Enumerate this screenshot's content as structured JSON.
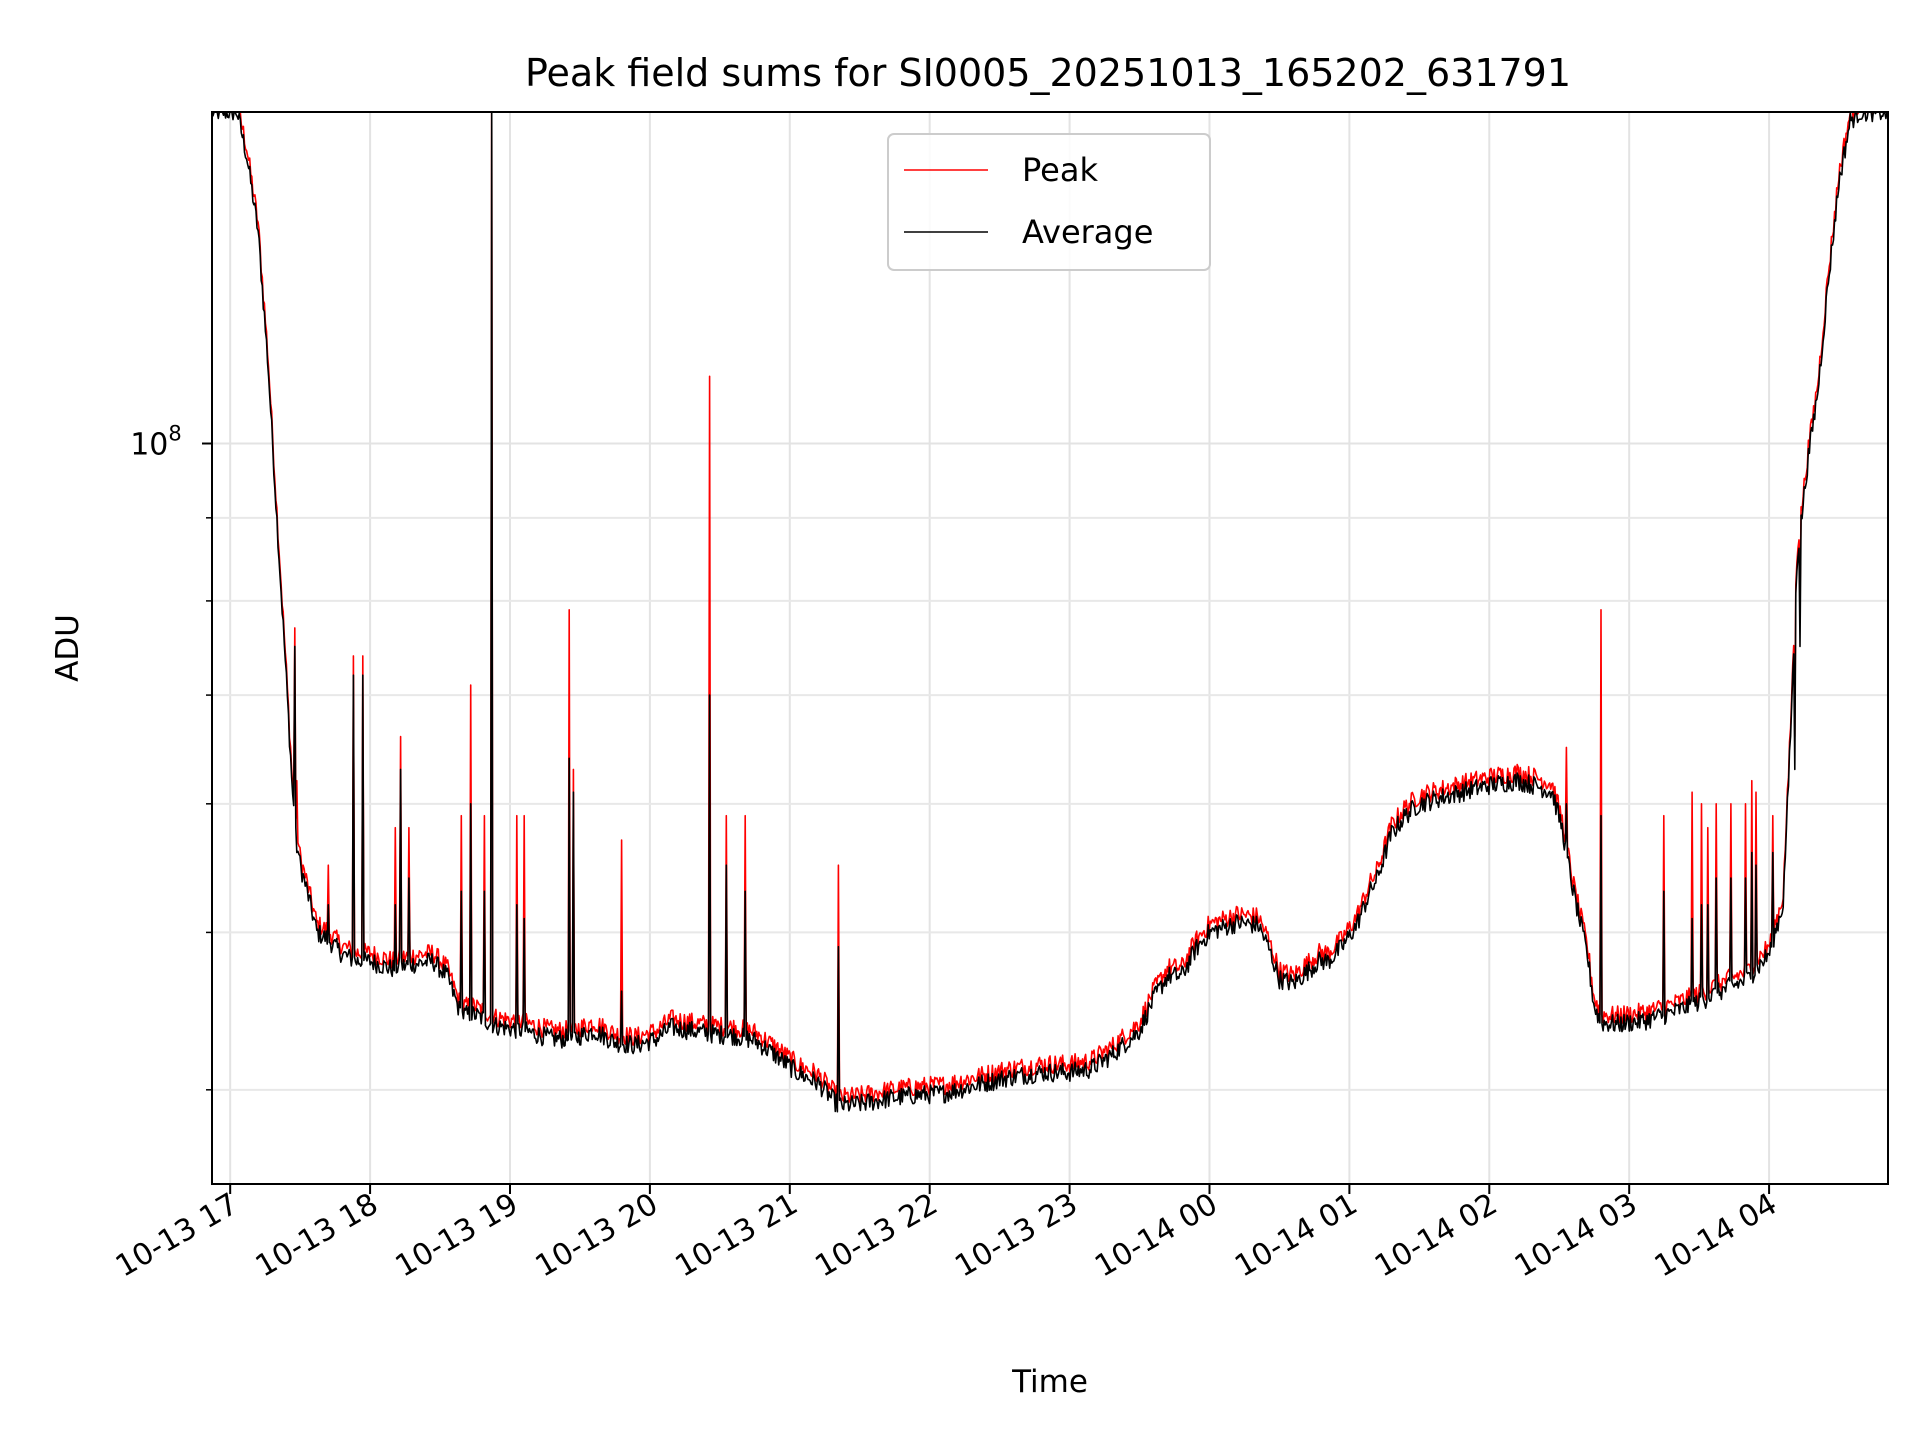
{
  "chart_data": {
    "type": "line",
    "title": "Peak field sums for SI0005_20251013_165202_631791",
    "xlabel": "Time",
    "ylabel": "ADU",
    "yscale": "log",
    "ylim": [
      35000000,
      160000000
    ],
    "xlim_hours": [
      16.87,
      28.85
    ],
    "x_unit": "hours since 2025-10-13 00:00",
    "grid": true,
    "legend_position": "upper-center",
    "y_major_tick_labels": [
      {
        "value": 100000000,
        "base": "10",
        "exponent": "8"
      }
    ],
    "y_minor_ticks": [
      40000000,
      50000000,
      60000000,
      70000000,
      80000000,
      90000000,
      200000000
    ],
    "x_ticks": [
      {
        "hour": 17,
        "label": "10-13 17"
      },
      {
        "hour": 18,
        "label": "10-13 18"
      },
      {
        "hour": 19,
        "label": "10-13 19"
      },
      {
        "hour": 20,
        "label": "10-13 20"
      },
      {
        "hour": 21,
        "label": "10-13 21"
      },
      {
        "hour": 22,
        "label": "10-13 22"
      },
      {
        "hour": 23,
        "label": "10-13 23"
      },
      {
        "hour": 24,
        "label": "10-14 00"
      },
      {
        "hour": 25,
        "label": "10-14 01"
      },
      {
        "hour": 26,
        "label": "10-14 02"
      },
      {
        "hour": 27,
        "label": "10-14 03"
      },
      {
        "hour": 28,
        "label": "10-14 04"
      }
    ],
    "series": [
      {
        "name": "Peak",
        "color": "#ff0000"
      },
      {
        "name": "Average",
        "color": "#000000"
      }
    ],
    "baseline": [
      [
        16.87,
        160000000
      ],
      [
        17.05,
        160000000
      ],
      [
        17.12,
        150000000
      ],
      [
        17.2,
        135000000
      ],
      [
        17.27,
        112000000
      ],
      [
        17.34,
        88000000
      ],
      [
        17.4,
        72000000
      ],
      [
        17.45,
        60000000
      ],
      [
        17.5,
        55000000
      ],
      [
        17.55,
        53000000
      ],
      [
        17.62,
        50000000
      ],
      [
        17.7,
        49500000
      ],
      [
        17.8,
        48500000
      ],
      [
        17.9,
        48000000
      ],
      [
        18.0,
        48000000
      ],
      [
        18.15,
        47500000
      ],
      [
        18.3,
        47800000
      ],
      [
        18.45,
        48000000
      ],
      [
        18.55,
        47000000
      ],
      [
        18.65,
        44500000
      ],
      [
        18.75,
        44500000
      ],
      [
        18.9,
        43800000
      ],
      [
        19.1,
        43500000
      ],
      [
        19.3,
        43000000
      ],
      [
        19.45,
        43000000
      ],
      [
        19.6,
        43500000
      ],
      [
        19.75,
        42800000
      ],
      [
        19.9,
        42600000
      ],
      [
        20.05,
        43000000
      ],
      [
        20.15,
        43700000
      ],
      [
        20.3,
        43500000
      ],
      [
        20.45,
        43300000
      ],
      [
        20.6,
        43200000
      ],
      [
        20.75,
        42900000
      ],
      [
        20.9,
        42000000
      ],
      [
        21.05,
        41000000
      ],
      [
        21.2,
        40400000
      ],
      [
        21.35,
        39100000
      ],
      [
        21.5,
        39200000
      ],
      [
        21.7,
        39500000
      ],
      [
        21.9,
        39700000
      ],
      [
        22.1,
        39800000
      ],
      [
        22.3,
        40200000
      ],
      [
        22.55,
        40700000
      ],
      [
        22.8,
        41000000
      ],
      [
        23.0,
        41000000
      ],
      [
        23.15,
        41200000
      ],
      [
        23.3,
        42000000
      ],
      [
        23.5,
        43500000
      ],
      [
        23.6,
        45500000
      ],
      [
        23.7,
        47000000
      ],
      [
        23.8,
        47000000
      ],
      [
        23.9,
        48800000
      ],
      [
        24.0,
        50000000
      ],
      [
        24.2,
        50700000
      ],
      [
        24.35,
        50500000
      ],
      [
        24.42,
        49000000
      ],
      [
        24.5,
        46800000
      ],
      [
        24.6,
        46500000
      ],
      [
        24.7,
        47300000
      ],
      [
        24.78,
        48000000
      ],
      [
        24.85,
        48000000
      ],
      [
        24.95,
        49000000
      ],
      [
        25.05,
        50500000
      ],
      [
        25.15,
        53000000
      ],
      [
        25.2,
        54000000
      ],
      [
        25.3,
        57500000
      ],
      [
        25.4,
        59000000
      ],
      [
        25.5,
        60000000
      ],
      [
        25.65,
        60500000
      ],
      [
        25.8,
        61000000
      ],
      [
        26.0,
        61600000
      ],
      [
        26.2,
        62000000
      ],
      [
        26.35,
        61500000
      ],
      [
        26.45,
        61000000
      ],
      [
        26.52,
        58000000
      ],
      [
        26.6,
        53000000
      ],
      [
        26.7,
        48500000
      ],
      [
        26.75,
        45000000
      ],
      [
        26.8,
        44000000
      ],
      [
        26.9,
        43900000
      ],
      [
        27.1,
        44100000
      ],
      [
        27.3,
        44600000
      ],
      [
        27.5,
        45300000
      ],
      [
        27.7,
        46200000
      ],
      [
        27.85,
        46800000
      ],
      [
        28.0,
        48500000
      ],
      [
        28.1,
        52000000
      ],
      [
        28.15,
        65000000
      ],
      [
        28.2,
        85000000
      ],
      [
        28.28,
        98000000
      ],
      [
        28.35,
        108000000
      ],
      [
        28.42,
        125000000
      ],
      [
        28.5,
        145000000
      ],
      [
        28.58,
        158000000
      ],
      [
        28.65,
        160000000
      ],
      [
        28.85,
        160000000
      ]
    ],
    "spikes": [
      [
        17.46,
        77000000,
        75000000
      ],
      [
        17.48,
        62000000,
        56000000
      ],
      [
        17.7,
        55000000,
        52000000
      ],
      [
        17.88,
        74000000,
        72000000
      ],
      [
        17.95,
        74000000,
        72000000
      ],
      [
        18.18,
        58000000,
        52000000
      ],
      [
        18.22,
        66000000,
        63000000
      ],
      [
        18.28,
        58000000,
        54000000
      ],
      [
        18.65,
        59000000,
        53000000
      ],
      [
        18.72,
        71000000,
        60000000
      ],
      [
        18.82,
        59000000,
        53000000
      ],
      [
        18.87,
        160000000,
        160000000
      ],
      [
        19.05,
        59000000,
        52000000
      ],
      [
        19.1,
        59000000,
        51000000
      ],
      [
        19.42,
        79000000,
        64000000
      ],
      [
        19.45,
        63000000,
        61000000
      ],
      [
        19.8,
        57000000,
        46000000
      ],
      [
        20.43,
        110000000,
        70000000
      ],
      [
        20.55,
        59000000,
        55000000
      ],
      [
        20.68,
        59000000,
        53000000
      ],
      [
        21.35,
        55000000,
        49000000
      ],
      [
        26.55,
        65000000,
        60000000
      ],
      [
        26.8,
        79000000,
        59000000
      ],
      [
        27.25,
        59000000,
        53000000
      ],
      [
        27.45,
        61000000,
        51000000
      ],
      [
        27.52,
        60000000,
        52000000
      ],
      [
        27.56,
        58000000,
        52000000
      ],
      [
        27.62,
        60000000,
        54000000
      ],
      [
        27.73,
        60000000,
        54000000
      ],
      [
        27.83,
        60000000,
        54000000
      ],
      [
        27.88,
        62000000,
        56000000
      ],
      [
        27.91,
        61000000,
        55000000
      ],
      [
        28.03,
        59000000,
        56000000
      ],
      [
        28.18,
        66000000,
        63000000
      ],
      [
        28.22,
        80000000,
        75000000
      ]
    ]
  }
}
